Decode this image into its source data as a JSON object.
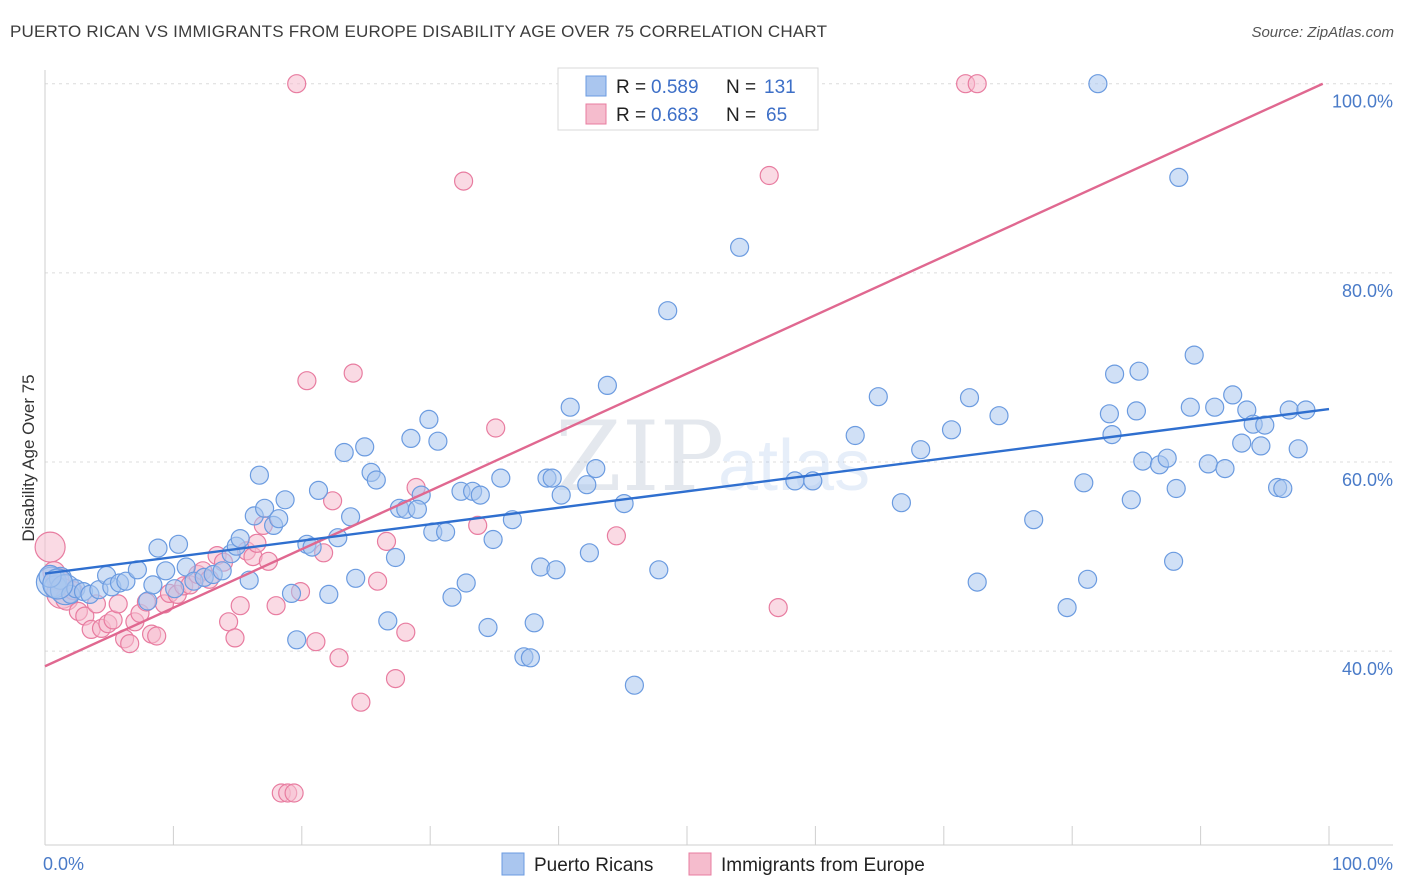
{
  "title": "PUERTO RICAN VS IMMIGRANTS FROM EUROPE DISABILITY AGE OVER 75 CORRELATION CHART",
  "source": "Source: ZipAtlas.com",
  "watermark": {
    "zip": "ZIP",
    "atlas": "atlas"
  },
  "colors": {
    "blue": "#6b9be0",
    "blue_fill": "#aac6ef",
    "pink": "#e87ca0",
    "pink_fill": "#f5bccd",
    "blue_line": "#2f6fcf",
    "pink_line": "#e06890",
    "tick": "#4a7bc8"
  },
  "chart_data": {
    "type": "scatter",
    "xlabel": "",
    "ylabel": "Disability Age Over 75",
    "x_ticks": [
      "0.0%",
      "100.0%"
    ],
    "y_ticks": [
      {
        "value": 40,
        "label": "40.0%"
      },
      {
        "value": 60,
        "label": "60.0%"
      },
      {
        "value": 80,
        "label": "80.0%"
      },
      {
        "value": 100,
        "label": "100.0%"
      }
    ],
    "xlim": [
      0,
      100
    ],
    "ylim": [
      19.5,
      100.5
    ],
    "grid": "horizontal dashed",
    "legend_top": [
      {
        "r_label": "R =",
        "r_value": "0.589",
        "n_label": "N =",
        "n_value": "131"
      },
      {
        "r_label": "R =",
        "r_value": "0.683",
        "n_label": "N =",
        "n_value": "65"
      }
    ],
    "legend_bottom": [
      "Puerto Ricans",
      "Immigrants from Europe"
    ],
    "series": [
      {
        "name": "Puerto Ricans",
        "trendline": [
          [
            0,
            48.2
          ],
          [
            100,
            65.6
          ]
        ],
        "points": [
          [
            0.5,
            47.3
          ],
          [
            0.8,
            46.8
          ],
          [
            1.2,
            47.7
          ],
          [
            1.6,
            46.5
          ],
          [
            2.0,
            46.0
          ],
          [
            2.4,
            46.6
          ],
          [
            3.0,
            46.3
          ],
          [
            3.5,
            46.0
          ],
          [
            4.2,
            46.5
          ],
          [
            4.8,
            48.0
          ],
          [
            5.2,
            46.8
          ],
          [
            5.8,
            47.2
          ],
          [
            6.3,
            47.4
          ],
          [
            7.2,
            48.6
          ],
          [
            8.0,
            45.3
          ],
          [
            8.4,
            47.0
          ],
          [
            8.8,
            50.9
          ],
          [
            9.4,
            48.5
          ],
          [
            10.1,
            46.6
          ],
          [
            10.4,
            51.3
          ],
          [
            11.0,
            48.9
          ],
          [
            11.6,
            47.4
          ],
          [
            12.4,
            47.8
          ],
          [
            13.1,
            48.1
          ],
          [
            13.8,
            48.5
          ],
          [
            14.5,
            50.3
          ],
          [
            14.9,
            51.1
          ],
          [
            15.2,
            51.9
          ],
          [
            15.9,
            47.5
          ],
          [
            16.3,
            54.3
          ],
          [
            16.7,
            58.6
          ],
          [
            17.1,
            55.1
          ],
          [
            17.8,
            53.3
          ],
          [
            18.2,
            54.0
          ],
          [
            18.7,
            56.0
          ],
          [
            19.2,
            46.1
          ],
          [
            19.6,
            41.2
          ],
          [
            20.4,
            51.3
          ],
          [
            20.8,
            51.0
          ],
          [
            21.3,
            57.0
          ],
          [
            22.1,
            46.0
          ],
          [
            22.8,
            52.0
          ],
          [
            23.3,
            61.0
          ],
          [
            23.8,
            54.2
          ],
          [
            24.2,
            47.7
          ],
          [
            24.9,
            61.6
          ],
          [
            25.4,
            58.9
          ],
          [
            25.8,
            58.1
          ],
          [
            26.7,
            43.2
          ],
          [
            27.3,
            49.9
          ],
          [
            27.6,
            55.1
          ],
          [
            28.1,
            55.0
          ],
          [
            28.5,
            62.5
          ],
          [
            29.3,
            56.5
          ],
          [
            29.9,
            64.5
          ],
          [
            30.2,
            52.6
          ],
          [
            30.6,
            62.2
          ],
          [
            31.2,
            52.6
          ],
          [
            31.7,
            45.7
          ],
          [
            32.4,
            56.9
          ],
          [
            32.8,
            47.2
          ],
          [
            33.3,
            56.9
          ],
          [
            33.9,
            56.5
          ],
          [
            34.5,
            42.5
          ],
          [
            34.9,
            51.8
          ],
          [
            35.5,
            58.3
          ],
          [
            36.4,
            53.9
          ],
          [
            37.3,
            39.4
          ],
          [
            37.8,
            39.3
          ],
          [
            38.1,
            43.0
          ],
          [
            38.6,
            48.9
          ],
          [
            39.1,
            58.3
          ],
          [
            39.5,
            58.3
          ],
          [
            39.8,
            48.6
          ],
          [
            40.2,
            56.5
          ],
          [
            40.9,
            65.8
          ],
          [
            42.2,
            57.6
          ],
          [
            42.4,
            50.4
          ],
          [
            42.9,
            59.3
          ],
          [
            43.8,
            68.1
          ],
          [
            45.1,
            55.6
          ],
          [
            45.9,
            36.4
          ],
          [
            47.8,
            48.6
          ],
          [
            48.5,
            76.0
          ],
          [
            54.1,
            82.7
          ],
          [
            58.4,
            58.0
          ],
          [
            59.8,
            58.0
          ],
          [
            63.1,
            62.8
          ],
          [
            64.9,
            66.9
          ],
          [
            66.7,
            55.7
          ],
          [
            68.2,
            61.3
          ],
          [
            70.6,
            63.4
          ],
          [
            72.0,
            66.8
          ],
          [
            72.6,
            47.3
          ],
          [
            74.3,
            64.9
          ],
          [
            77.0,
            53.9
          ],
          [
            79.6,
            44.6
          ],
          [
            80.9,
            57.8
          ],
          [
            81.2,
            47.6
          ],
          [
            82.9,
            65.1
          ],
          [
            83.1,
            62.9
          ],
          [
            83.3,
            69.3
          ],
          [
            84.6,
            56.0
          ],
          [
            85.0,
            65.4
          ],
          [
            85.2,
            69.6
          ],
          [
            85.5,
            60.1
          ],
          [
            86.8,
            59.7
          ],
          [
            87.4,
            60.4
          ],
          [
            87.9,
            49.5
          ],
          [
            88.1,
            57.2
          ],
          [
            88.3,
            90.1
          ],
          [
            89.2,
            65.8
          ],
          [
            89.5,
            71.3
          ],
          [
            90.6,
            59.8
          ],
          [
            91.1,
            65.8
          ],
          [
            91.9,
            59.3
          ],
          [
            92.5,
            67.1
          ],
          [
            93.2,
            62.0
          ],
          [
            93.6,
            65.5
          ],
          [
            94.1,
            64.0
          ],
          [
            94.7,
            61.7
          ],
          [
            95.0,
            63.9
          ],
          [
            96.0,
            57.3
          ],
          [
            96.4,
            57.2
          ],
          [
            96.9,
            65.5
          ],
          [
            97.6,
            61.4
          ],
          [
            98.2,
            65.5
          ],
          [
            82.0,
            100
          ],
          [
            0.4,
            47.9
          ],
          [
            1.0,
            47.1
          ],
          [
            29.0,
            55.0
          ]
        ]
      },
      {
        "name": "Immigrants from Europe",
        "trendline": [
          [
            0,
            38.4
          ],
          [
            100,
            100.3
          ]
        ],
        "points": [
          [
            0.4,
            51.0
          ],
          [
            0.7,
            48.3
          ],
          [
            1.0,
            47.6
          ],
          [
            1.3,
            46.1
          ],
          [
            1.7,
            45.5
          ],
          [
            2.2,
            46.4
          ],
          [
            2.6,
            44.2
          ],
          [
            3.1,
            43.7
          ],
          [
            3.6,
            42.3
          ],
          [
            4.0,
            45.0
          ],
          [
            4.4,
            42.4
          ],
          [
            4.9,
            42.9
          ],
          [
            5.3,
            43.3
          ],
          [
            5.7,
            45.0
          ],
          [
            6.2,
            41.3
          ],
          [
            6.6,
            40.8
          ],
          [
            7.0,
            43.1
          ],
          [
            7.4,
            44.0
          ],
          [
            7.9,
            45.2
          ],
          [
            8.3,
            41.8
          ],
          [
            8.7,
            41.6
          ],
          [
            9.3,
            45.0
          ],
          [
            9.7,
            46.1
          ],
          [
            10.3,
            46.0
          ],
          [
            10.8,
            46.9
          ],
          [
            11.3,
            47.0
          ],
          [
            11.9,
            48.1
          ],
          [
            12.3,
            48.5
          ],
          [
            12.8,
            47.6
          ],
          [
            13.4,
            50.1
          ],
          [
            13.9,
            49.4
          ],
          [
            14.3,
            43.1
          ],
          [
            14.8,
            41.4
          ],
          [
            15.2,
            44.8
          ],
          [
            15.7,
            50.6
          ],
          [
            16.2,
            50.0
          ],
          [
            16.5,
            51.4
          ],
          [
            17.0,
            53.3
          ],
          [
            17.4,
            49.5
          ],
          [
            18.0,
            44.8
          ],
          [
            18.4,
            25.0
          ],
          [
            18.9,
            25.0
          ],
          [
            19.4,
            25.0
          ],
          [
            19.9,
            46.3
          ],
          [
            20.4,
            68.6
          ],
          [
            21.1,
            41.0
          ],
          [
            21.7,
            50.4
          ],
          [
            22.4,
            55.9
          ],
          [
            22.9,
            39.3
          ],
          [
            24.0,
            69.4
          ],
          [
            24.6,
            34.6
          ],
          [
            25.9,
            47.4
          ],
          [
            26.6,
            51.6
          ],
          [
            27.3,
            37.1
          ],
          [
            28.1,
            42.0
          ],
          [
            28.9,
            57.3
          ],
          [
            32.6,
            89.7
          ],
          [
            33.7,
            53.3
          ],
          [
            35.1,
            63.6
          ],
          [
            44.5,
            52.2
          ],
          [
            56.4,
            90.3
          ],
          [
            57.1,
            44.6
          ],
          [
            19.6,
            100
          ],
          [
            71.7,
            100
          ],
          [
            72.6,
            100
          ]
        ]
      }
    ]
  }
}
